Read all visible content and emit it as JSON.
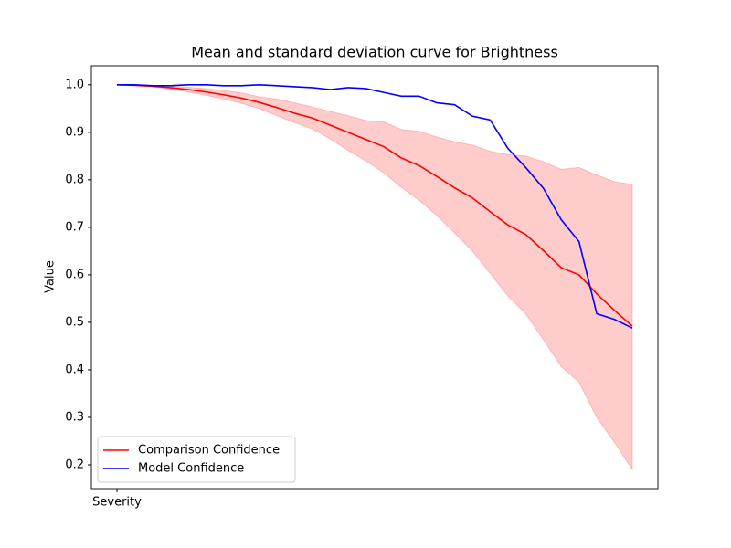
{
  "chart_data": {
    "type": "line",
    "title": "Mean and standard deviation curve for Brightness",
    "ylabel": "Value",
    "x": [
      0,
      1,
      2,
      3,
      4,
      5,
      6,
      7,
      8,
      9,
      10,
      11,
      12,
      13,
      14,
      15,
      16,
      17,
      18,
      19,
      20,
      21,
      22,
      23,
      24,
      25,
      26,
      27,
      28,
      29
    ],
    "xlim": [
      -1.44,
      30.44
    ],
    "xticks": [
      {
        "value": 0,
        "label": "Severity"
      }
    ],
    "ylim": [
      0.15,
      1.04
    ],
    "yticks": [
      {
        "value": 0.2,
        "label": "0.2"
      },
      {
        "value": 0.3,
        "label": "0.3"
      },
      {
        "value": 0.4,
        "label": "0.4"
      },
      {
        "value": 0.5,
        "label": "0.5"
      },
      {
        "value": 0.6,
        "label": "0.6"
      },
      {
        "value": 0.7,
        "label": "0.7"
      },
      {
        "value": 0.8,
        "label": "0.8"
      },
      {
        "value": 0.9,
        "label": "0.9"
      },
      {
        "value": 1.0,
        "label": "1.0"
      }
    ],
    "legend": "lower left",
    "band": {
      "color": "#ff0000",
      "upper": [
        1.0,
        1.0,
        0.999,
        0.997,
        0.995,
        0.992,
        0.988,
        0.983,
        0.975,
        0.97,
        0.962,
        0.953,
        0.944,
        0.935,
        0.925,
        0.922,
        0.906,
        0.902,
        0.89,
        0.88,
        0.873,
        0.86,
        0.853,
        0.85,
        0.838,
        0.822,
        0.826,
        0.81,
        0.796,
        0.79
      ],
      "lower": [
        1.0,
        0.998,
        0.995,
        0.991,
        0.985,
        0.978,
        0.97,
        0.961,
        0.95,
        0.935,
        0.92,
        0.907,
        0.886,
        0.862,
        0.84,
        0.815,
        0.784,
        0.757,
        0.725,
        0.688,
        0.65,
        0.603,
        0.555,
        0.518,
        0.463,
        0.407,
        0.374,
        0.3,
        0.247,
        0.19
      ]
    },
    "series": [
      {
        "name": "Comparison Confidence",
        "color": "#ff0000",
        "values": [
          1.0,
          0.999,
          0.997,
          0.994,
          0.99,
          0.985,
          0.979,
          0.972,
          0.963,
          0.952,
          0.94,
          0.93,
          0.915,
          0.9,
          0.885,
          0.87,
          0.846,
          0.83,
          0.807,
          0.783,
          0.762,
          0.733,
          0.705,
          0.685,
          0.651,
          0.615,
          0.6,
          0.56,
          0.525,
          0.492
        ]
      },
      {
        "name": "Model Confidence",
        "color": "#0000ff",
        "values": [
          1.0,
          1.0,
          0.998,
          0.998,
          1.0,
          1.0,
          0.998,
          0.998,
          1.0,
          0.998,
          0.996,
          0.994,
          0.99,
          0.994,
          0.992,
          0.984,
          0.976,
          0.976,
          0.962,
          0.958,
          0.934,
          0.926,
          0.866,
          0.826,
          0.782,
          0.716,
          0.67,
          0.518,
          0.506,
          0.488
        ]
      }
    ]
  }
}
